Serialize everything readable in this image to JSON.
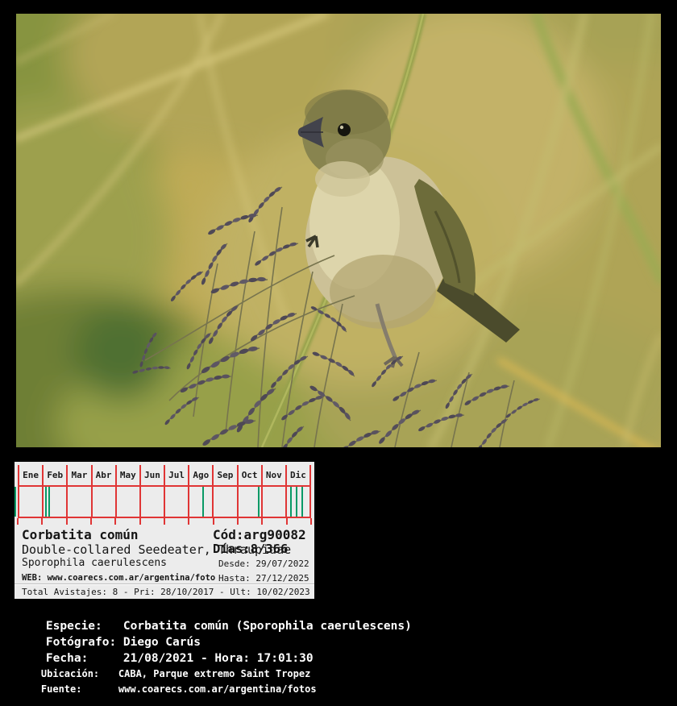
{
  "colors": {
    "background": "#000000",
    "panel_bg": "#ececec",
    "grid_red": "#e03535",
    "mark_green": "#0a9a66",
    "sci_teal": "#1aa17b",
    "web_red": "#e02222"
  },
  "calendar": {
    "months": [
      "Ene",
      "Feb",
      "Mar",
      "Abr",
      "May",
      "Jun",
      "Jul",
      "Ago",
      "Sep",
      "Oct",
      "Nov",
      "Dic"
    ],
    "marks_pct": [
      -1.0,
      9.3,
      10.4,
      63.2,
      82.3,
      93.4,
      95.3,
      97.3
    ]
  },
  "record": {
    "common_name": "Corbatita común",
    "code": "Cód:arg90082",
    "family_line": "Double-collared Seedeater, Thraupidae",
    "days": "Días:8/366",
    "scientific_name": "Sporophila caerulescens",
    "web": "WEB: www.coarecs.com.ar/argentina/foto",
    "desde": "Desde: 29/07/2022",
    "hasta": "Hasta: 27/12/2025",
    "totals": "Total Avistajes: 8 - Pri: 28/10/2017 - Ult: 10/02/2023"
  },
  "details": {
    "rows": [
      {
        "label": "Especie:",
        "value": "Corbatita común (Sporophila caerulescens)"
      },
      {
        "label": "Fotógrafo:",
        "value": "Diego Carús"
      },
      {
        "label": "Fecha:",
        "value": "21/08/2021 - Hora: 17:01:30"
      },
      {
        "label": "Ubicación:",
        "value": "CABA, Parque extremo Saint Tropez"
      },
      {
        "label": "Fuente:",
        "value": "www.coarecs.com.ar/argentina/fotos"
      }
    ]
  },
  "photo": {
    "subject": "Corbatita común perched on grass seed heads"
  }
}
